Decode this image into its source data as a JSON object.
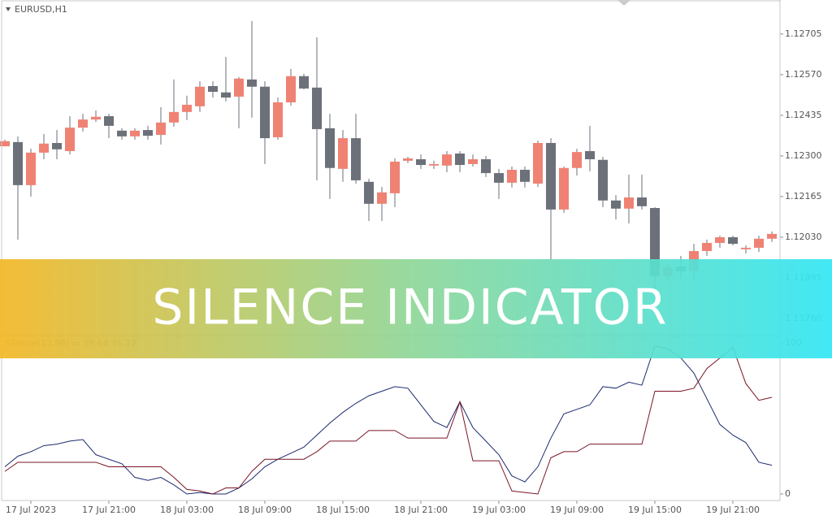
{
  "window": {
    "symbol": "EURUSD,H1"
  },
  "banner": "SILENCE INDICATOR",
  "chart_data": [
    {
      "type": "candlestick",
      "categories": [
        null,
        null,
        "17 Jul 2023",
        null,
        null,
        null,
        null,
        null,
        "17 Jul 21:00",
        null,
        null,
        null,
        null,
        null,
        "18 Jul 03:00",
        null,
        null,
        null,
        null,
        null,
        "18 Jul 09:00",
        null,
        null,
        null,
        null,
        null,
        "18 Jul 15:00",
        null,
        null,
        null,
        null,
        null,
        "18 Jul 21:00",
        null,
        null,
        null,
        null,
        null,
        "19 Jul 03:00",
        null,
        null,
        null,
        null,
        null,
        "19 Jul 09:00",
        null,
        null,
        null,
        null,
        null,
        "19 Jul 15:00",
        null,
        null,
        null,
        null,
        null,
        "19 Jul 21:00",
        null,
        null,
        null
      ],
      "open": [
        1.12332,
        1.12346,
        1.12203,
        1.12311,
        1.12343,
        1.12316,
        1.12394,
        1.12421,
        1.12432,
        1.12384,
        1.12365,
        1.12386,
        1.1237,
        1.12411,
        1.12446,
        1.12465,
        1.12532,
        1.12511,
        1.12497,
        1.12554,
        1.1253,
        1.12362,
        1.12478,
        1.12565,
        1.12527,
        1.12392,
        1.12257,
        1.12359,
        1.12214,
        1.12141,
        1.12176,
        1.12284,
        1.12289,
        1.12268,
        1.12268,
        1.12308,
        1.12273,
        1.12289,
        1.12243,
        1.12211,
        1.12254,
        1.12208,
        1.12343,
        1.12122,
        1.1226,
        1.12316,
        1.12287,
        1.12152,
        1.12125,
        1.12162,
        1.12127,
        1.119,
        1.11933,
        1.11917,
        1.11984,
        1.12011,
        1.1203,
        1.1199,
        1.11995,
        1.12025
      ],
      "high": [
        1.12354,
        1.12365,
        1.12324,
        1.12373,
        1.12386,
        1.12432,
        1.1244,
        1.12451,
        1.1244,
        1.12392,
        1.12392,
        1.124,
        1.12462,
        1.12554,
        1.125,
        1.12548,
        1.12548,
        1.12629,
        1.12562,
        1.12748,
        1.12548,
        1.12494,
        1.12589,
        1.12573,
        1.12694,
        1.1244,
        1.12386,
        1.1244,
        1.12224,
        1.12197,
        1.12292,
        1.12297,
        1.12305,
        1.12284,
        1.12316,
        1.12316,
        1.12305,
        1.123,
        1.12257,
        1.12265,
        1.12265,
        1.12351,
        1.12359,
        1.12265,
        1.12324,
        1.124,
        1.12297,
        1.1217,
        1.12238,
        1.12238,
        1.1213,
        1.11941,
        1.11968,
        1.12008,
        1.12022,
        1.12035,
        1.12035,
        1.12003,
        1.12035,
        1.12049
      ],
      "low": [
        1.12332,
        1.12022,
        1.12165,
        1.12289,
        1.12289,
        1.12305,
        1.12381,
        1.12413,
        1.12359,
        1.12354,
        1.12354,
        1.12354,
        1.12338,
        1.12397,
        1.12419,
        1.12446,
        1.12494,
        1.12481,
        1.12392,
        1.12427,
        1.12273,
        1.12354,
        1.12467,
        1.12521,
        1.12219,
        1.12157,
        1.12214,
        1.12208,
        1.12084,
        1.12084,
        1.1213,
        1.12276,
        1.12257,
        1.12257,
        1.12246,
        1.12246,
        1.12265,
        1.1223,
        1.12157,
        1.12195,
        1.12195,
        1.12197,
        1.11954,
        1.12111,
        1.12235,
        1.12249,
        1.1213,
        1.12089,
        1.12076,
        1.12122,
        1.11846,
        1.11887,
        1.11895,
        1.11887,
        1.11968,
        1.11995,
        1.12003,
        1.11976,
        1.11981,
        1.12014
      ],
      "close": [
        1.12349,
        1.12203,
        1.12311,
        1.12341,
        1.12322,
        1.12394,
        1.12421,
        1.1243,
        1.124,
        1.12365,
        1.12384,
        1.12367,
        1.12411,
        1.12446,
        1.1247,
        1.1253,
        1.12513,
        1.12494,
        1.12557,
        1.1253,
        1.12359,
        1.12478,
        1.12565,
        1.12524,
        1.12389,
        1.1226,
        1.12359,
        1.12219,
        1.12141,
        1.12179,
        1.12281,
        1.12292,
        1.1227,
        1.12273,
        1.12305,
        1.1227,
        1.12289,
        1.12243,
        1.12211,
        1.12254,
        1.12214,
        1.12343,
        1.12122,
        1.1226,
        1.12313,
        1.12289,
        1.12152,
        1.12125,
        1.12162,
        1.12133,
        1.119,
        1.1193,
        1.11917,
        1.11984,
        1.12011,
        1.1203,
        1.12008,
        1.11995,
        1.12025,
        1.12041
      ],
      "up_color": "#ef8273",
      "down_color": "#6b7079",
      "wick_color": "#b4b8bd",
      "ylim": [
        1.11706,
        1.12818
      ],
      "yticks": [
        {
          "value": 1.12705,
          "label": "1.12705"
        },
        {
          "value": 1.1257,
          "label": "1.12570"
        },
        {
          "value": 1.12435,
          "label": "1.12435"
        },
        {
          "value": 1.123,
          "label": "1.12300"
        },
        {
          "value": 1.12165,
          "label": "1.12165"
        },
        {
          "value": 1.1203,
          "label": "1.12030"
        },
        {
          "value": 1.11895,
          "label": "1.11895"
        },
        {
          "value": 1.1176,
          "label": "1.11760"
        }
      ]
    },
    {
      "type": "line",
      "title": "Silence(12,96) =  39.64 35.17",
      "series": [
        {
          "color": "#1b2a6e",
          "values": [
            18,
            25,
            28,
            32,
            33,
            35,
            36,
            26,
            23,
            20,
            11,
            9,
            11,
            6,
            0,
            1,
            0,
            0,
            4,
            10,
            18,
            23,
            27,
            31,
            39,
            47,
            54,
            60,
            65,
            68,
            71,
            70,
            59,
            48,
            44,
            61,
            44,
            35,
            26,
            12,
            8,
            18,
            37,
            53,
            56,
            59,
            71,
            70,
            74,
            72,
            98,
            96,
            90,
            80,
            63,
            46,
            39,
            34,
            21,
            19
          ]
        },
        {
          "color": "#7a1424",
          "values": [
            15,
            21,
            21,
            21,
            21,
            21,
            21,
            21,
            18,
            18,
            18,
            18,
            18,
            11,
            3,
            2,
            0,
            4,
            4,
            15,
            23,
            23,
            23,
            23,
            28,
            35,
            35,
            35,
            42,
            42,
            42,
            37,
            37,
            37,
            37,
            61,
            22,
            22,
            22,
            2,
            1,
            0,
            24,
            28,
            28,
            33,
            33,
            33,
            33,
            33,
            68,
            68,
            68,
            70,
            83,
            90,
            97,
            73,
            62,
            64
          ]
        }
      ],
      "ylim": [
        0,
        100
      ],
      "yticks": [
        0,
        100
      ]
    }
  ]
}
